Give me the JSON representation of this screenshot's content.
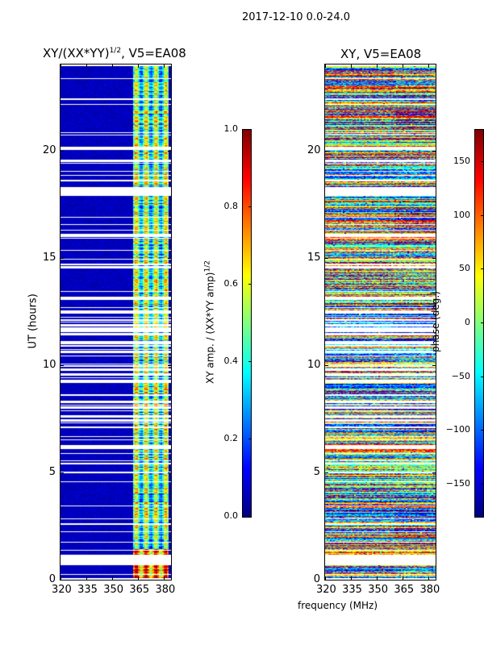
{
  "suptitle": "2017-12-10 0.0-24.0",
  "chart_data": [
    {
      "type": "heatmap",
      "title": "XY/(XX*YY)",
      "title_sup": "1/2",
      "title_suffix": ", V5=EA08",
      "xlabel": "",
      "ylabel": "UT (hours)",
      "xlim": [
        320,
        384
      ],
      "ylim": [
        0,
        24
      ],
      "xticks": [
        "320",
        "335",
        "350",
        "365",
        "380"
      ],
      "xtick_values": [
        320,
        335,
        350,
        365,
        380
      ],
      "yticks": [
        "0",
        "5",
        "10",
        "15",
        "20"
      ],
      "ytick_values": [
        0,
        5,
        10,
        15,
        20
      ],
      "colorbar": {
        "label": "XY amp. / (XX*YY amp)",
        "label_sup": "1/2",
        "range": [
          0,
          1
        ],
        "ticks": [
          "0.0",
          "0.2",
          "0.4",
          "0.6",
          "0.8",
          "1.0"
        ],
        "tick_values": [
          0,
          0.2,
          0.4,
          0.6,
          0.8,
          1.0
        ],
        "cmap": "jet"
      },
      "description_values": {
        "low_band_level": 0.05,
        "high_band_mhz": [
          362,
          382
        ],
        "high_band_level": 0.5
      }
    },
    {
      "type": "heatmap",
      "title": "XY, V5=EA08",
      "xlabel": "frequency (MHz)",
      "ylabel": "",
      "xlim": [
        320,
        384
      ],
      "ylim": [
        0,
        24
      ],
      "xticks": [
        "320",
        "335",
        "350",
        "365",
        "380"
      ],
      "xtick_values": [
        320,
        335,
        350,
        365,
        380
      ],
      "yticks": [
        "0",
        "5",
        "10",
        "15",
        "20"
      ],
      "ytick_values": [
        0,
        5,
        10,
        15,
        20
      ],
      "colorbar": {
        "label": "phase (deg.)",
        "range": [
          -180,
          180
        ],
        "ticks": [
          "−150",
          "−100",
          "−50",
          "0",
          "50",
          "100",
          "150"
        ],
        "tick_values": [
          -150,
          -100,
          -50,
          0,
          50,
          100,
          150
        ],
        "cmap": "jet"
      }
    }
  ]
}
